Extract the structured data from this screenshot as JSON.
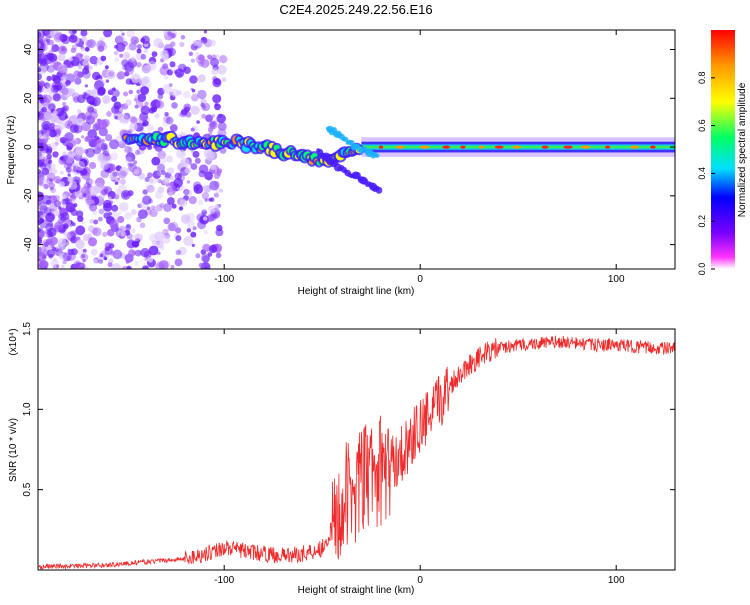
{
  "page_title": "C2E4.2025.249.22.56.E16",
  "colors": {
    "snr_line": "#ee2a2a",
    "colormap": [
      "#ff33ff",
      "#7a00ff",
      "#0000ff",
      "#00e0ff",
      "#00ff66",
      "#ffff00",
      "#ff9900",
      "#ff0000"
    ]
  },
  "chart_data": [
    {
      "type": "heatmap",
      "title": "C2E4.2025.249.22.56.E16",
      "xlabel": "Height of straight line (km)",
      "ylabel": "Frequency (Hz)",
      "xlim": [
        -195,
        130
      ],
      "ylim": [
        -50,
        48
      ],
      "xticks": [
        -100,
        0,
        100
      ],
      "xtick_labels": [
        "-100",
        "0",
        "100"
      ],
      "yticks": [
        -40,
        -20,
        0,
        20,
        40
      ],
      "ytick_labels": [
        "-40",
        "-20",
        "0",
        "20",
        "40"
      ],
      "colorbar": {
        "label": "Normalized spectral amplitude",
        "range": [
          0,
          1
        ],
        "ticks": [
          0.0,
          0.2,
          0.4,
          0.6,
          0.8
        ],
        "tick_labels": [
          "0.0",
          "0.2",
          "0.4",
          "0.6",
          "0.8"
        ]
      },
      "main_trace": {
        "x": [
          -150,
          -130,
          -110,
          -95,
          -80,
          -65,
          -55,
          -45,
          -40,
          -30,
          -20,
          -10,
          0,
          10,
          20,
          40,
          60,
          80,
          100,
          130
        ],
        "y": [
          3,
          3,
          2,
          2,
          0,
          -3,
          -5,
          -6,
          -2,
          0,
          0,
          0,
          1,
          0,
          0,
          0,
          0,
          0,
          0,
          0
        ]
      },
      "secondary_traces": [
        {
          "x": [
            -52,
            -45,
            -38,
            -30,
            -25,
            -21
          ],
          "y": [
            -2,
            -6,
            -10,
            -13,
            -16,
            -18
          ]
        },
        {
          "x": [
            -47,
            -40,
            -33,
            -27,
            -22
          ],
          "y": [
            8,
            4,
            0,
            -2,
            -3
          ]
        }
      ]
    },
    {
      "type": "line",
      "xlabel": "Height of straight line (km)",
      "ylabel": "SNR (10 * v/v)",
      "y_multiplier": "(x10⁴)",
      "xlim": [
        -195,
        130
      ],
      "ylim": [
        0,
        1.5
      ],
      "xticks": [
        -100,
        0,
        100
      ],
      "xtick_labels": [
        "-100",
        "0",
        "100"
      ],
      "yticks": [
        0.5,
        1.0,
        1.5
      ],
      "ytick_labels": [
        "0.5",
        "1.0",
        "1.5"
      ],
      "series": [
        {
          "name": "SNR",
          "x": [
            -195,
            -160,
            -140,
            -120,
            -110,
            -100,
            -90,
            -80,
            -70,
            -60,
            -50,
            -45,
            -40,
            -35,
            -30,
            -25,
            -20,
            -15,
            -10,
            -5,
            0,
            5,
            10,
            15,
            20,
            25,
            30,
            35,
            40,
            50,
            60,
            70,
            80,
            90,
            100,
            110,
            120,
            130
          ],
          "y": [
            0.02,
            0.03,
            0.05,
            0.07,
            0.1,
            0.14,
            0.12,
            0.1,
            0.09,
            0.1,
            0.14,
            0.25,
            0.4,
            0.5,
            0.55,
            0.6,
            0.62,
            0.65,
            0.72,
            0.8,
            0.9,
            0.95,
            1.05,
            1.15,
            1.22,
            1.28,
            1.32,
            1.36,
            1.38,
            1.4,
            1.41,
            1.42,
            1.41,
            1.4,
            1.4,
            1.39,
            1.38,
            1.38
          ]
        }
      ]
    }
  ]
}
